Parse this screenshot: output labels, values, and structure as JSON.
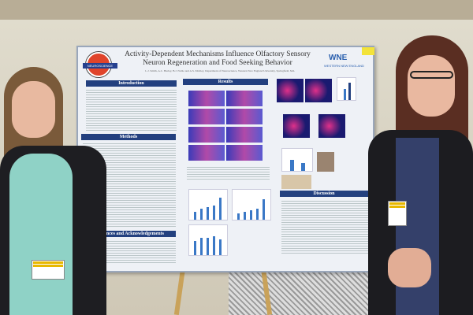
{
  "poster": {
    "title_line1": "Activity-Dependent Mechanisms Influence Olfactory Sensory",
    "title_line2": "Neuron Regeneration and Food Seeking Behavior",
    "authors": "L.J. Smith, A.C. Hurley, B.J. Noble and A.S. Mobley, Department of Neuroscience, Western New England University, Springfield, MA",
    "logo_text": "NEUROSCIENCE",
    "university_mark": "WNE",
    "university_name": "WESTERN NEW ENGLAND",
    "sections": {
      "introduction": "Introduction",
      "methods": "Methods",
      "references": "References and Acknowledgements",
      "results": "Results",
      "discussion": "Discussion"
    }
  },
  "colors": {
    "header": "#23407f",
    "bars": "#3a78c6",
    "wall": "#d8d2c2"
  }
}
